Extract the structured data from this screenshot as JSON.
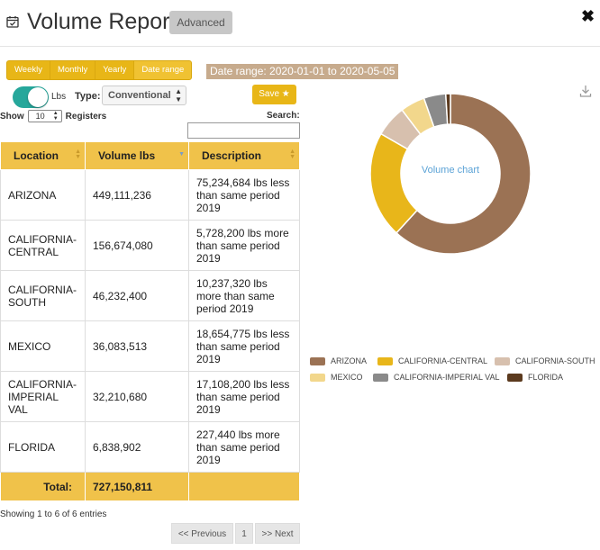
{
  "header": {
    "title": "Volume Report",
    "advanced_label": "Advanced",
    "close_glyph": "✖"
  },
  "periods": [
    "Weekly",
    "Monthly",
    "Yearly",
    "Date range"
  ],
  "active_period": "Date range",
  "date_range": "Date range: 2020-01-01 to 2020-05-05",
  "controls": {
    "unit_label": "Lbs",
    "unit_toggle_on": true,
    "type_label": "Type:",
    "type_value": "Conventional",
    "save_label": "Save ★",
    "show_label": "Show",
    "entries_value": "10",
    "registers_label": "Registers",
    "search_label": "Search:",
    "search_value": ""
  },
  "table": {
    "columns": [
      "Location",
      "Volume lbs",
      "Description"
    ],
    "rows": [
      {
        "location": "ARIZONA",
        "volume": "449,111,236",
        "description": "75,234,684 lbs less than same period 2019"
      },
      {
        "location": "CALIFORNIA-CENTRAL",
        "volume": "156,674,080",
        "description": "5,728,200 lbs more than same period 2019"
      },
      {
        "location": "CALIFORNIA-SOUTH",
        "volume": "46,232,400",
        "description": "10,237,320 lbs more than same period 2019"
      },
      {
        "location": "MEXICO",
        "volume": "36,083,513",
        "description": "18,654,775 lbs less than same period 2019"
      },
      {
        "location": "CALIFORNIA-IMPERIAL VAL",
        "volume": "32,210,680",
        "description": "17,108,200 lbs less than same period 2019"
      },
      {
        "location": "FLORIDA",
        "volume": "6,838,902",
        "description": "227,440 lbs more than same period 2019"
      }
    ],
    "total_label": "Total:",
    "total_value": "727,150,811"
  },
  "pagination": {
    "info": "Showing 1 to 6 of 6 entries",
    "previous": "<< Previous",
    "page": "1",
    "next": ">> Next"
  },
  "chart_data": {
    "type": "pie",
    "center_label": "Volume chart",
    "legend_position": "bottom",
    "categories": [
      "ARIZONA",
      "CALIFORNIA-CENTRAL",
      "CALIFORNIA-SOUTH",
      "MEXICO",
      "CALIFORNIA-IMPERIAL VAL",
      "FLORIDA"
    ],
    "legend_labels": [
      "ARIZONA",
      "CALIFORNIA-CENTRAL",
      "CALIFORNIA-SOUTH",
      "MEXICO",
      "CALIFORNIA-IMPERIAL VAL",
      "FLORIDA"
    ],
    "values": [
      449111236,
      156674080,
      46232400,
      36083513,
      32210680,
      6838902
    ],
    "colors": [
      "#9b7254",
      "#e8b61a",
      "#d7c0ae",
      "#f2d78c",
      "#8a8a8a",
      "#5b3a1e"
    ]
  }
}
